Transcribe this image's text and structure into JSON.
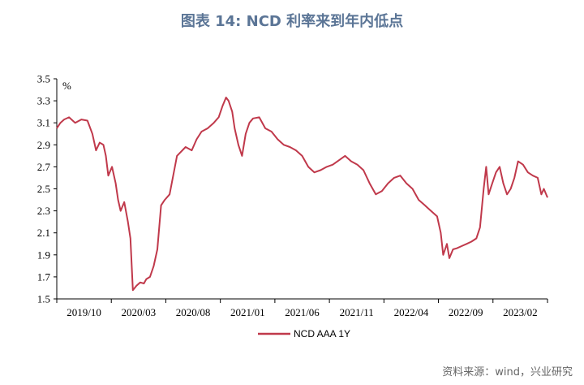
{
  "title": "图表 14: NCD 利率来到年内低点",
  "source": "资料来源：wind，兴业研究",
  "chart_data": {
    "type": "line",
    "title": "图表 14: NCD 利率来到年内低点",
    "xlabel": "",
    "ylabel": "%",
    "ylim": [
      1.5,
      3.5
    ],
    "yticks": [
      "3.5",
      "3.3",
      "3.1",
      "2.9",
      "2.7",
      "2.5",
      "2.3",
      "2.1",
      "1.9",
      "1.7",
      "1.5"
    ],
    "xticks": [
      "2019/10",
      "2020/03",
      "2020/08",
      "2021/01",
      "2021/06",
      "2021/11",
      "2022/04",
      "2022/09",
      "2023/02"
    ],
    "xrange": [
      0,
      40
    ],
    "legend": "bottom-center",
    "line_color": "#c0394b",
    "series": [
      {
        "name": "NCD AAA 1Y",
        "x": [
          0,
          0.3,
          0.6,
          1.0,
          1.5,
          2.0,
          2.5,
          2.9,
          3.2,
          3.5,
          3.8,
          4.0,
          4.2,
          4.5,
          4.8,
          5.0,
          5.2,
          5.5,
          5.8,
          6.0,
          6.2,
          6.5,
          6.8,
          7.1,
          7.3,
          7.6,
          7.9,
          8.2,
          8.5,
          8.8,
          9.2,
          9.8,
          10.5,
          11.0,
          11.4,
          11.8,
          12.3,
          12.8,
          13.2,
          13.5,
          13.8,
          14.0,
          14.3,
          14.5,
          14.8,
          15.1,
          15.4,
          15.7,
          16.0,
          16.5,
          17.0,
          17.5,
          18.0,
          18.5,
          19.0,
          19.5,
          20.0,
          20.5,
          21.0,
          21.5,
          22.0,
          22.5,
          23.0,
          23.5,
          24.0,
          24.5,
          25.0,
          25.5,
          26.0,
          26.5,
          27.0,
          27.5,
          28.0,
          28.5,
          29.0,
          29.5,
          30.0,
          30.5,
          31.0,
          31.3,
          31.5,
          31.8,
          32.0,
          32.3,
          32.6,
          33.0,
          33.4,
          33.8,
          34.2,
          34.5,
          34.8,
          35.0,
          35.2,
          35.5,
          35.8,
          36.1,
          36.4,
          36.7,
          37.0,
          37.3,
          37.6,
          38.0,
          38.4,
          38.8,
          39.2,
          39.5,
          39.7,
          40.0
        ],
        "values": [
          3.05,
          3.1,
          3.13,
          3.15,
          3.1,
          3.13,
          3.12,
          3.0,
          2.85,
          2.92,
          2.9,
          2.8,
          2.62,
          2.7,
          2.55,
          2.4,
          2.3,
          2.38,
          2.2,
          2.05,
          1.58,
          1.62,
          1.65,
          1.64,
          1.68,
          1.7,
          1.8,
          1.95,
          2.35,
          2.4,
          2.45,
          2.8,
          2.88,
          2.85,
          2.95,
          3.02,
          3.05,
          3.1,
          3.15,
          3.25,
          3.33,
          3.3,
          3.2,
          3.05,
          2.9,
          2.8,
          3.0,
          3.1,
          3.14,
          3.15,
          3.05,
          3.02,
          2.95,
          2.9,
          2.88,
          2.85,
          2.8,
          2.7,
          2.65,
          2.67,
          2.7,
          2.72,
          2.76,
          2.8,
          2.75,
          2.72,
          2.67,
          2.55,
          2.45,
          2.48,
          2.55,
          2.6,
          2.62,
          2.55,
          2.5,
          2.4,
          2.35,
          2.3,
          2.25,
          2.1,
          1.9,
          2.0,
          1.87,
          1.95,
          1.96,
          1.98,
          2.0,
          2.02,
          2.05,
          2.15,
          2.5,
          2.7,
          2.45,
          2.55,
          2.65,
          2.7,
          2.55,
          2.45,
          2.5,
          2.6,
          2.75,
          2.72,
          2.65,
          2.62,
          2.6,
          2.45,
          2.5,
          2.42
        ]
      }
    ]
  }
}
